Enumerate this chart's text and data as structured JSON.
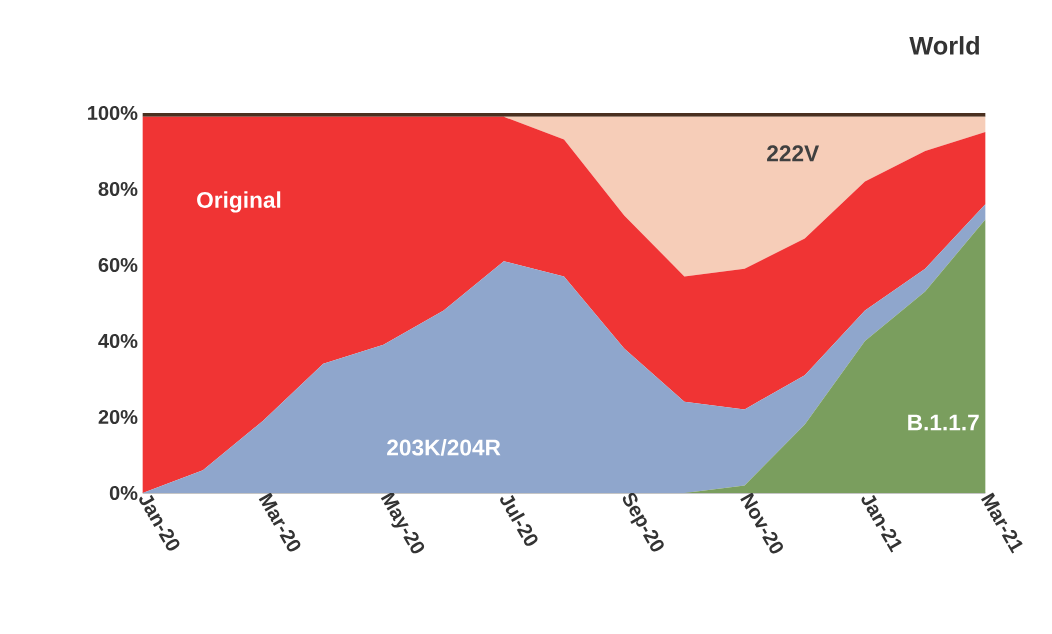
{
  "chart_data": {
    "type": "area",
    "title": "World",
    "stacked": true,
    "categories": [
      "Jan-20",
      null,
      "Mar-20",
      null,
      "May-20",
      null,
      "Jul-20",
      null,
      "Sep-20",
      null,
      "Nov-20",
      null,
      "Jan-21",
      null,
      "Mar-21"
    ],
    "series": [
      {
        "name": "B.1.1.7",
        "color": "#7a9e5e",
        "values": [
          0,
          0,
          0,
          0,
          0,
          0,
          0,
          0,
          0,
          0,
          2,
          18,
          40,
          53,
          72
        ]
      },
      {
        "name": "203K/204R",
        "color": "#8fa6cc",
        "values": [
          0,
          6,
          19,
          34,
          39,
          48,
          61,
          57,
          38,
          24,
          20,
          13,
          8,
          6,
          4
        ]
      },
      {
        "name": "Original",
        "color": "#f03434",
        "values": [
          99,
          93,
          80,
          65,
          60,
          51,
          38,
          36,
          35,
          33,
          37,
          36,
          34,
          31,
          19
        ]
      },
      {
        "name": "222V",
        "color": "#f6cdb8",
        "values": [
          0,
          0,
          0,
          0,
          0,
          0,
          0,
          6,
          26,
          42,
          40,
          32,
          17,
          9,
          4
        ]
      },
      {
        "color": "#4a3020",
        "values": [
          1,
          1,
          1,
          1,
          1,
          1,
          1,
          1,
          1,
          1,
          1,
          1,
          1,
          1,
          1
        ]
      }
    ],
    "ylim": [
      0,
      100
    ],
    "yticks": [
      {
        "value": 0,
        "label": "0%"
      },
      {
        "value": 20,
        "label": "20%"
      },
      {
        "value": 40,
        "label": "40%"
      },
      {
        "value": 60,
        "label": "60%"
      },
      {
        "value": 80,
        "label": "80%"
      },
      {
        "value": 100,
        "label": "100%"
      }
    ]
  }
}
